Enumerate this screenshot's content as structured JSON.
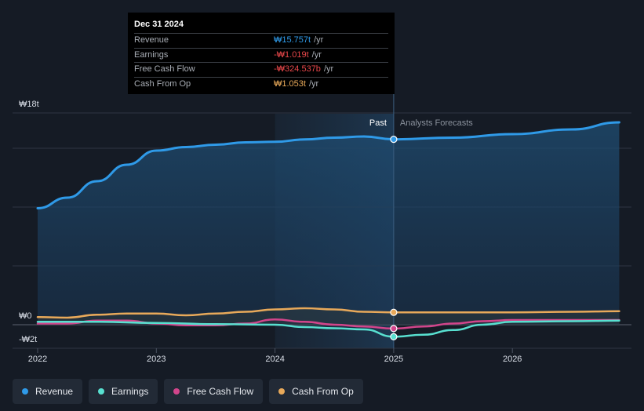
{
  "chart_data": {
    "type": "line",
    "title": "",
    "x_ticks": [
      "2022",
      "2023",
      "2024",
      "2025",
      "2026"
    ],
    "x_range": [
      2022.0,
      2026.9
    ],
    "y_range": [
      -2,
      18
    ],
    "y_ticks": [
      {
        "value": 18,
        "label": "₩18t"
      },
      {
        "value": 0,
        "label": "₩0"
      },
      {
        "value": -2,
        "label": "-₩2t"
      }
    ],
    "gridlines": [
      18,
      15,
      10,
      5,
      0,
      -2
    ],
    "past_label": "Past",
    "forecast_label": "Analysts Forecasts",
    "divider_x": 2025.0,
    "highlight_start": 2024.0,
    "series": [
      {
        "name": "Revenue",
        "color": "#2f9ae8",
        "fill": true,
        "x": [
          2022.0,
          2022.25,
          2022.5,
          2022.75,
          2023.0,
          2023.25,
          2023.5,
          2023.75,
          2024.0,
          2024.25,
          2024.5,
          2024.75,
          2025.0,
          2025.5,
          2026.0,
          2026.5,
          2026.9
        ],
        "y": [
          9.9,
          10.8,
          12.2,
          13.6,
          14.8,
          15.1,
          15.3,
          15.5,
          15.55,
          15.75,
          15.9,
          16.0,
          15.757,
          15.9,
          16.2,
          16.6,
          17.2
        ]
      },
      {
        "name": "Earnings",
        "color": "#58e0d0",
        "fill": false,
        "x": [
          2022.0,
          2022.5,
          2023.0,
          2023.5,
          2024.0,
          2024.25,
          2024.5,
          2024.75,
          2025.0,
          2025.25,
          2025.5,
          2025.75,
          2026.0,
          2026.5,
          2026.9
        ],
        "y": [
          0.25,
          0.25,
          0.15,
          0.05,
          0.0,
          -0.2,
          -0.3,
          -0.4,
          -1.019,
          -0.85,
          -0.45,
          0.0,
          0.25,
          0.3,
          0.35
        ]
      },
      {
        "name": "Free Cash Flow",
        "color": "#d2458b",
        "fill": false,
        "x": [
          2022.0,
          2022.25,
          2022.5,
          2022.75,
          2023.0,
          2023.25,
          2023.5,
          2023.75,
          2024.0,
          2024.25,
          2024.5,
          2024.75,
          2025.0,
          2025.25,
          2025.5,
          2025.75,
          2026.0,
          2026.5,
          2026.9
        ],
        "y": [
          0.1,
          0.1,
          0.35,
          0.35,
          0.1,
          -0.05,
          -0.05,
          0.1,
          0.45,
          0.25,
          0.0,
          -0.15,
          -0.325,
          -0.15,
          0.1,
          0.3,
          0.4,
          0.4,
          0.4
        ]
      },
      {
        "name": "Cash From Op",
        "color": "#e8a95a",
        "fill": false,
        "x": [
          2022.0,
          2022.25,
          2022.5,
          2022.75,
          2023.0,
          2023.25,
          2023.5,
          2023.75,
          2024.0,
          2024.25,
          2024.5,
          2024.75,
          2025.0,
          2025.5,
          2026.0,
          2026.5,
          2026.9
        ],
        "y": [
          0.65,
          0.6,
          0.85,
          0.95,
          0.95,
          0.8,
          0.95,
          1.1,
          1.3,
          1.4,
          1.3,
          1.1,
          1.053,
          1.05,
          1.05,
          1.1,
          1.15
        ]
      }
    ]
  },
  "tooltip": {
    "date": "Dec 31 2024",
    "rows": [
      {
        "label": "Revenue",
        "value": "₩15.757t",
        "unit": "/yr",
        "color": "#2f9ae8"
      },
      {
        "label": "Earnings",
        "value": "-₩1.019t",
        "unit": "/yr",
        "color": "#e8474a"
      },
      {
        "label": "Free Cash Flow",
        "value": "-₩324.537b",
        "unit": "/yr",
        "color": "#e8474a"
      },
      {
        "label": "Cash From Op",
        "value": "₩1.053t",
        "unit": "/yr",
        "color": "#e8a95a"
      }
    ]
  },
  "legend": [
    {
      "label": "Revenue",
      "color": "#2f9ae8"
    },
    {
      "label": "Earnings",
      "color": "#58e0d0"
    },
    {
      "label": "Free Cash Flow",
      "color": "#d2458b"
    },
    {
      "label": "Cash From Op",
      "color": "#e8a95a"
    }
  ]
}
